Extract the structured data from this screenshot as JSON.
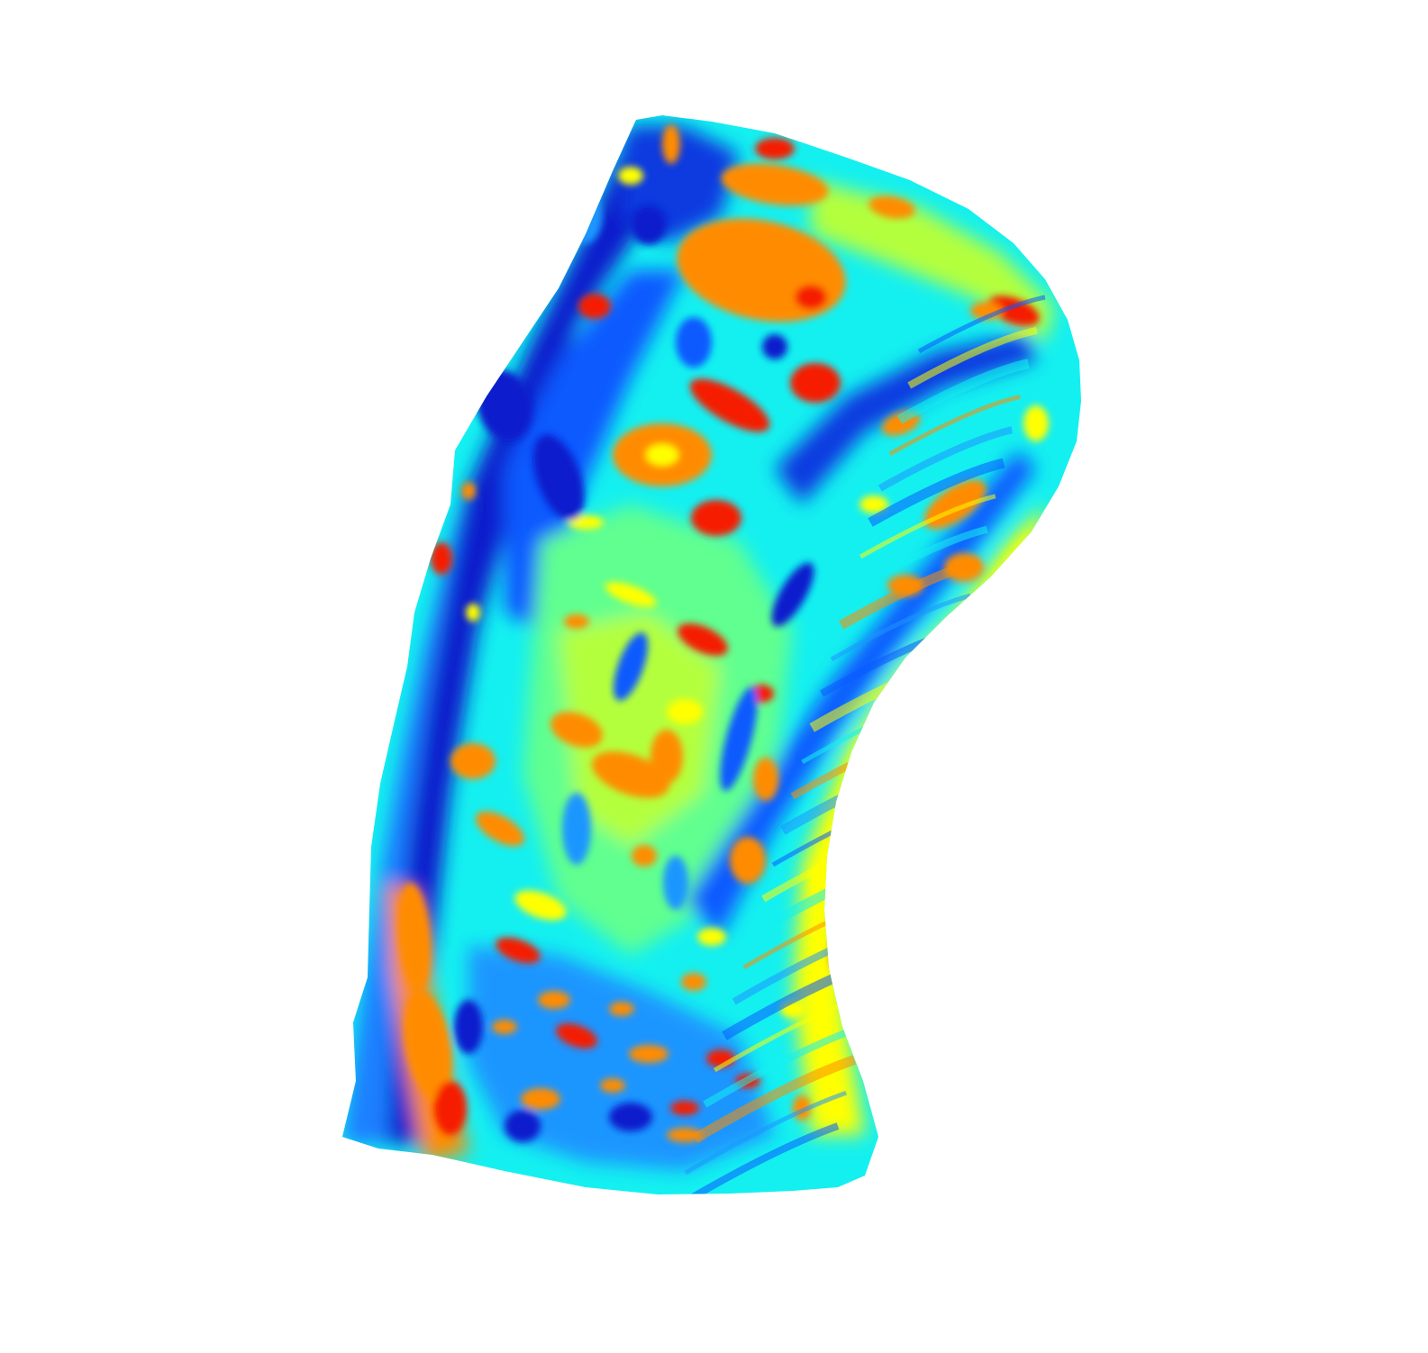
{
  "figure": {
    "type": "3d-surface-heatmap",
    "colormap": "jet",
    "background_color": "#ffffff",
    "colormap_stops": [
      "#00008f",
      "#0000ff",
      "#0080ff",
      "#00ffff",
      "#80ff80",
      "#ffff00",
      "#ff8000",
      "#ff0000",
      "#800000"
    ],
    "dominant_colors": {
      "deep_blue": "#0a1ecc",
      "blue": "#0a5aff",
      "light_blue": "#1e96ff",
      "cyan": "#14f0f0",
      "green_yellow": "#b4ff3c",
      "yellow": "#ffff00",
      "orange": "#ff8c00",
      "red": "#f51e00",
      "dark_red": "#c80000"
    },
    "title": "",
    "axis_labels_visible": false,
    "colorbar_visible": false
  }
}
